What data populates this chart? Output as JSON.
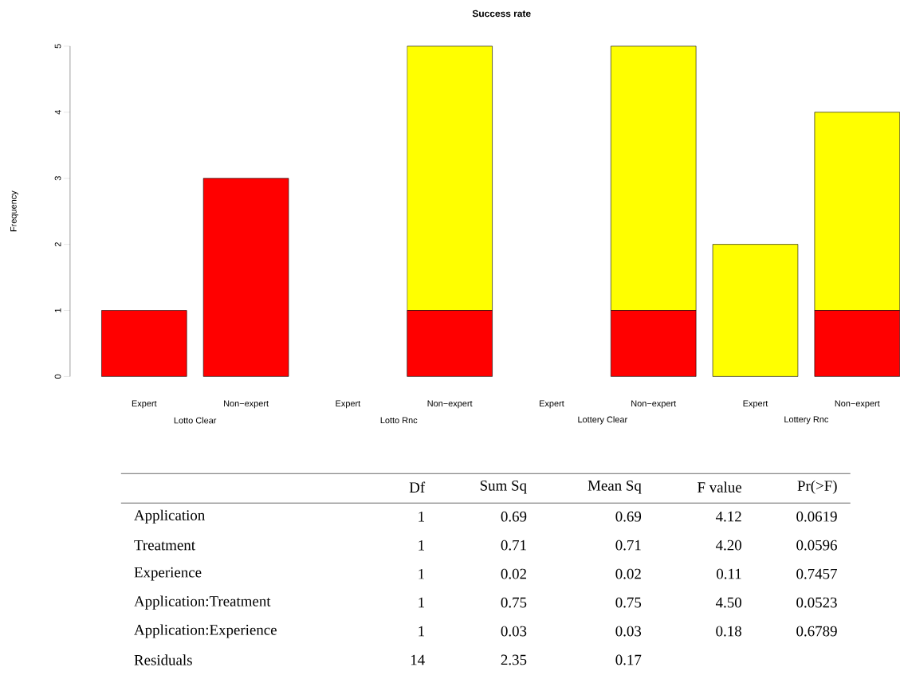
{
  "chart_data": [
    {
      "type": "bar",
      "title": "Success rate",
      "ylabel": "Frequency",
      "stacked": true,
      "categories": [
        "Expert",
        "Non−expert",
        "Expert",
        "Non−expert",
        "Expert",
        "Non−expert",
        "Expert",
        "Non−expert"
      ],
      "annotations": [
        "Lotto Clear",
        "Lotto Rnc",
        "Lottery Clear",
        "Lottery Rnc"
      ],
      "series": [
        {
          "color": "#ff0000",
          "values": [
            1,
            3,
            0,
            1,
            0,
            1,
            0,
            1
          ]
        },
        {
          "color": "#ffff00",
          "values": [
            0,
            0,
            0,
            4,
            0,
            4,
            2,
            3
          ]
        }
      ],
      "ylim": [
        0,
        5
      ],
      "yticks": [
        0,
        1,
        2,
        3,
        4,
        5
      ]
    },
    {
      "type": "other",
      "categories": [
        "Df",
        "Sum Sq",
        "Mean Sq",
        "F value",
        "Pr(>F)"
      ],
      "y_categories": [
        "Application",
        "Treatment",
        "Experience",
        "Application:Treatment",
        "Application:Experience",
        "Residuals"
      ],
      "cell_labels": [
        [
          "1",
          "0.69",
          "0.69",
          "4.12",
          "0.0619"
        ],
        [
          "1",
          "0.71",
          "0.71",
          "4.20",
          "0.0596"
        ],
        [
          "1",
          "0.02",
          "0.02",
          "0.11",
          "0.7457"
        ],
        [
          "1",
          "0.75",
          "0.75",
          "4.50",
          "0.0523"
        ],
        [
          "1",
          "0.03",
          "0.03",
          "0.18",
          "0.6789"
        ],
        [
          "14",
          "2.35",
          "0.17",
          null,
          null
        ]
      ]
    }
  ]
}
